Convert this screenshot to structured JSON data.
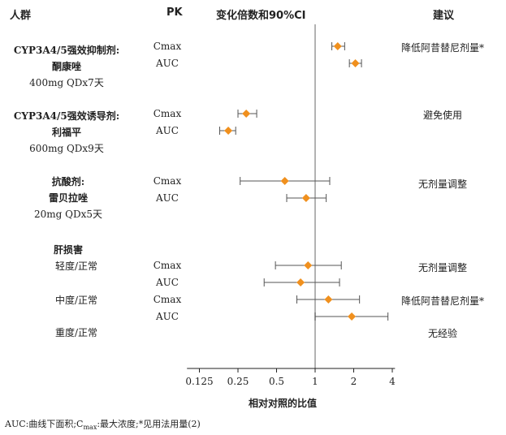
{
  "headers": {
    "population": "人群",
    "pk": "PK",
    "fold_change": "变化倍数和90%CI",
    "recommendation": "建议"
  },
  "groups": [
    {
      "bold1": "CYP3A4/5强效抑制剂:",
      "bold2": "酮康唑",
      "dose": "400mg QDx7天"
    },
    {
      "bold1": "CYP3A4/5强效诱导剂:",
      "bold2": "利福平",
      "dose": "600mg QDx9天"
    },
    {
      "bold1": "抗酸剂:",
      "bold2": "雷贝拉唑",
      "dose": "20mg QDx5天"
    },
    {
      "bold1": "肝损害"
    }
  ],
  "hepatic_sub": [
    "轻度/正常",
    "中度/正常",
    "重度/正常"
  ],
  "rows": [
    {
      "pk": "Cmax",
      "advice": "降低阿昔替尼剂量*"
    },
    {
      "pk": "AUC",
      "advice": ""
    },
    {
      "pk": "Cmax",
      "advice": "避免使用"
    },
    {
      "pk": "AUC",
      "advice": ""
    },
    {
      "pk": "Cmax",
      "advice": "无剂量调整"
    },
    {
      "pk": "AUC",
      "advice": ""
    },
    {
      "pk": "Cmax",
      "advice": "无剂量调整"
    },
    {
      "pk": "AUC",
      "advice": ""
    },
    {
      "pk": "Cmax",
      "advice": "降低阿昔替尼剂量*"
    },
    {
      "pk": "AUC",
      "advice": ""
    },
    {
      "pk": "",
      "advice": "无经验"
    }
  ],
  "footnote": "AUC:曲线下面积;C",
  "footnote_sub": "max",
  "footnote_rest": ":最大浓度;*见用法用量(2)",
  "chart_data": {
    "type": "forest",
    "xlabel": "相对对照的比值",
    "xscale": "log",
    "xlim": [
      0.1,
      4.2
    ],
    "reference_line": 1,
    "x_ticks": [
      0.125,
      0.25,
      0.5,
      1,
      2,
      4
    ],
    "x_tick_labels": [
      "0.125",
      "0.25",
      "0.5",
      "1",
      "2",
      "4"
    ],
    "marker_color": "#f0901e",
    "points": [
      {
        "group": "CYP3A4/5强效抑制剂: 酮康唑",
        "pk": "Cmax",
        "estimate": 1.5,
        "ci": [
          1.35,
          1.7
        ]
      },
      {
        "group": "CYP3A4/5强效抑制剂: 酮康唑",
        "pk": "AUC",
        "estimate": 2.06,
        "ci": [
          1.85,
          2.3
        ]
      },
      {
        "group": "CYP3A4/5强效诱导剂: 利福平",
        "pk": "Cmax",
        "estimate": 0.29,
        "ci": [
          0.25,
          0.35
        ]
      },
      {
        "group": "CYP3A4/5强效诱导剂: 利福平",
        "pk": "AUC",
        "estimate": 0.21,
        "ci": [
          0.18,
          0.24
        ]
      },
      {
        "group": "抗酸剂: 雷贝拉唑",
        "pk": "Cmax",
        "estimate": 0.58,
        "ci": [
          0.26,
          1.3
        ]
      },
      {
        "group": "抗酸剂: 雷贝拉唑",
        "pk": "AUC",
        "estimate": 0.85,
        "ci": [
          0.6,
          1.22
        ]
      },
      {
        "group": "肝损害: 轻度/正常",
        "pk": "Cmax",
        "estimate": 0.88,
        "ci": [
          0.49,
          1.6
        ]
      },
      {
        "group": "肝损害: 轻度/正常",
        "pk": "AUC",
        "estimate": 0.77,
        "ci": [
          0.4,
          1.55
        ]
      },
      {
        "group": "肝损害: 中度/正常",
        "pk": "Cmax",
        "estimate": 1.27,
        "ci": [
          0.72,
          2.22
        ]
      },
      {
        "group": "肝损害: 中度/正常",
        "pk": "AUC",
        "estimate": 1.93,
        "ci": [
          1.0,
          3.7
        ]
      }
    ]
  }
}
